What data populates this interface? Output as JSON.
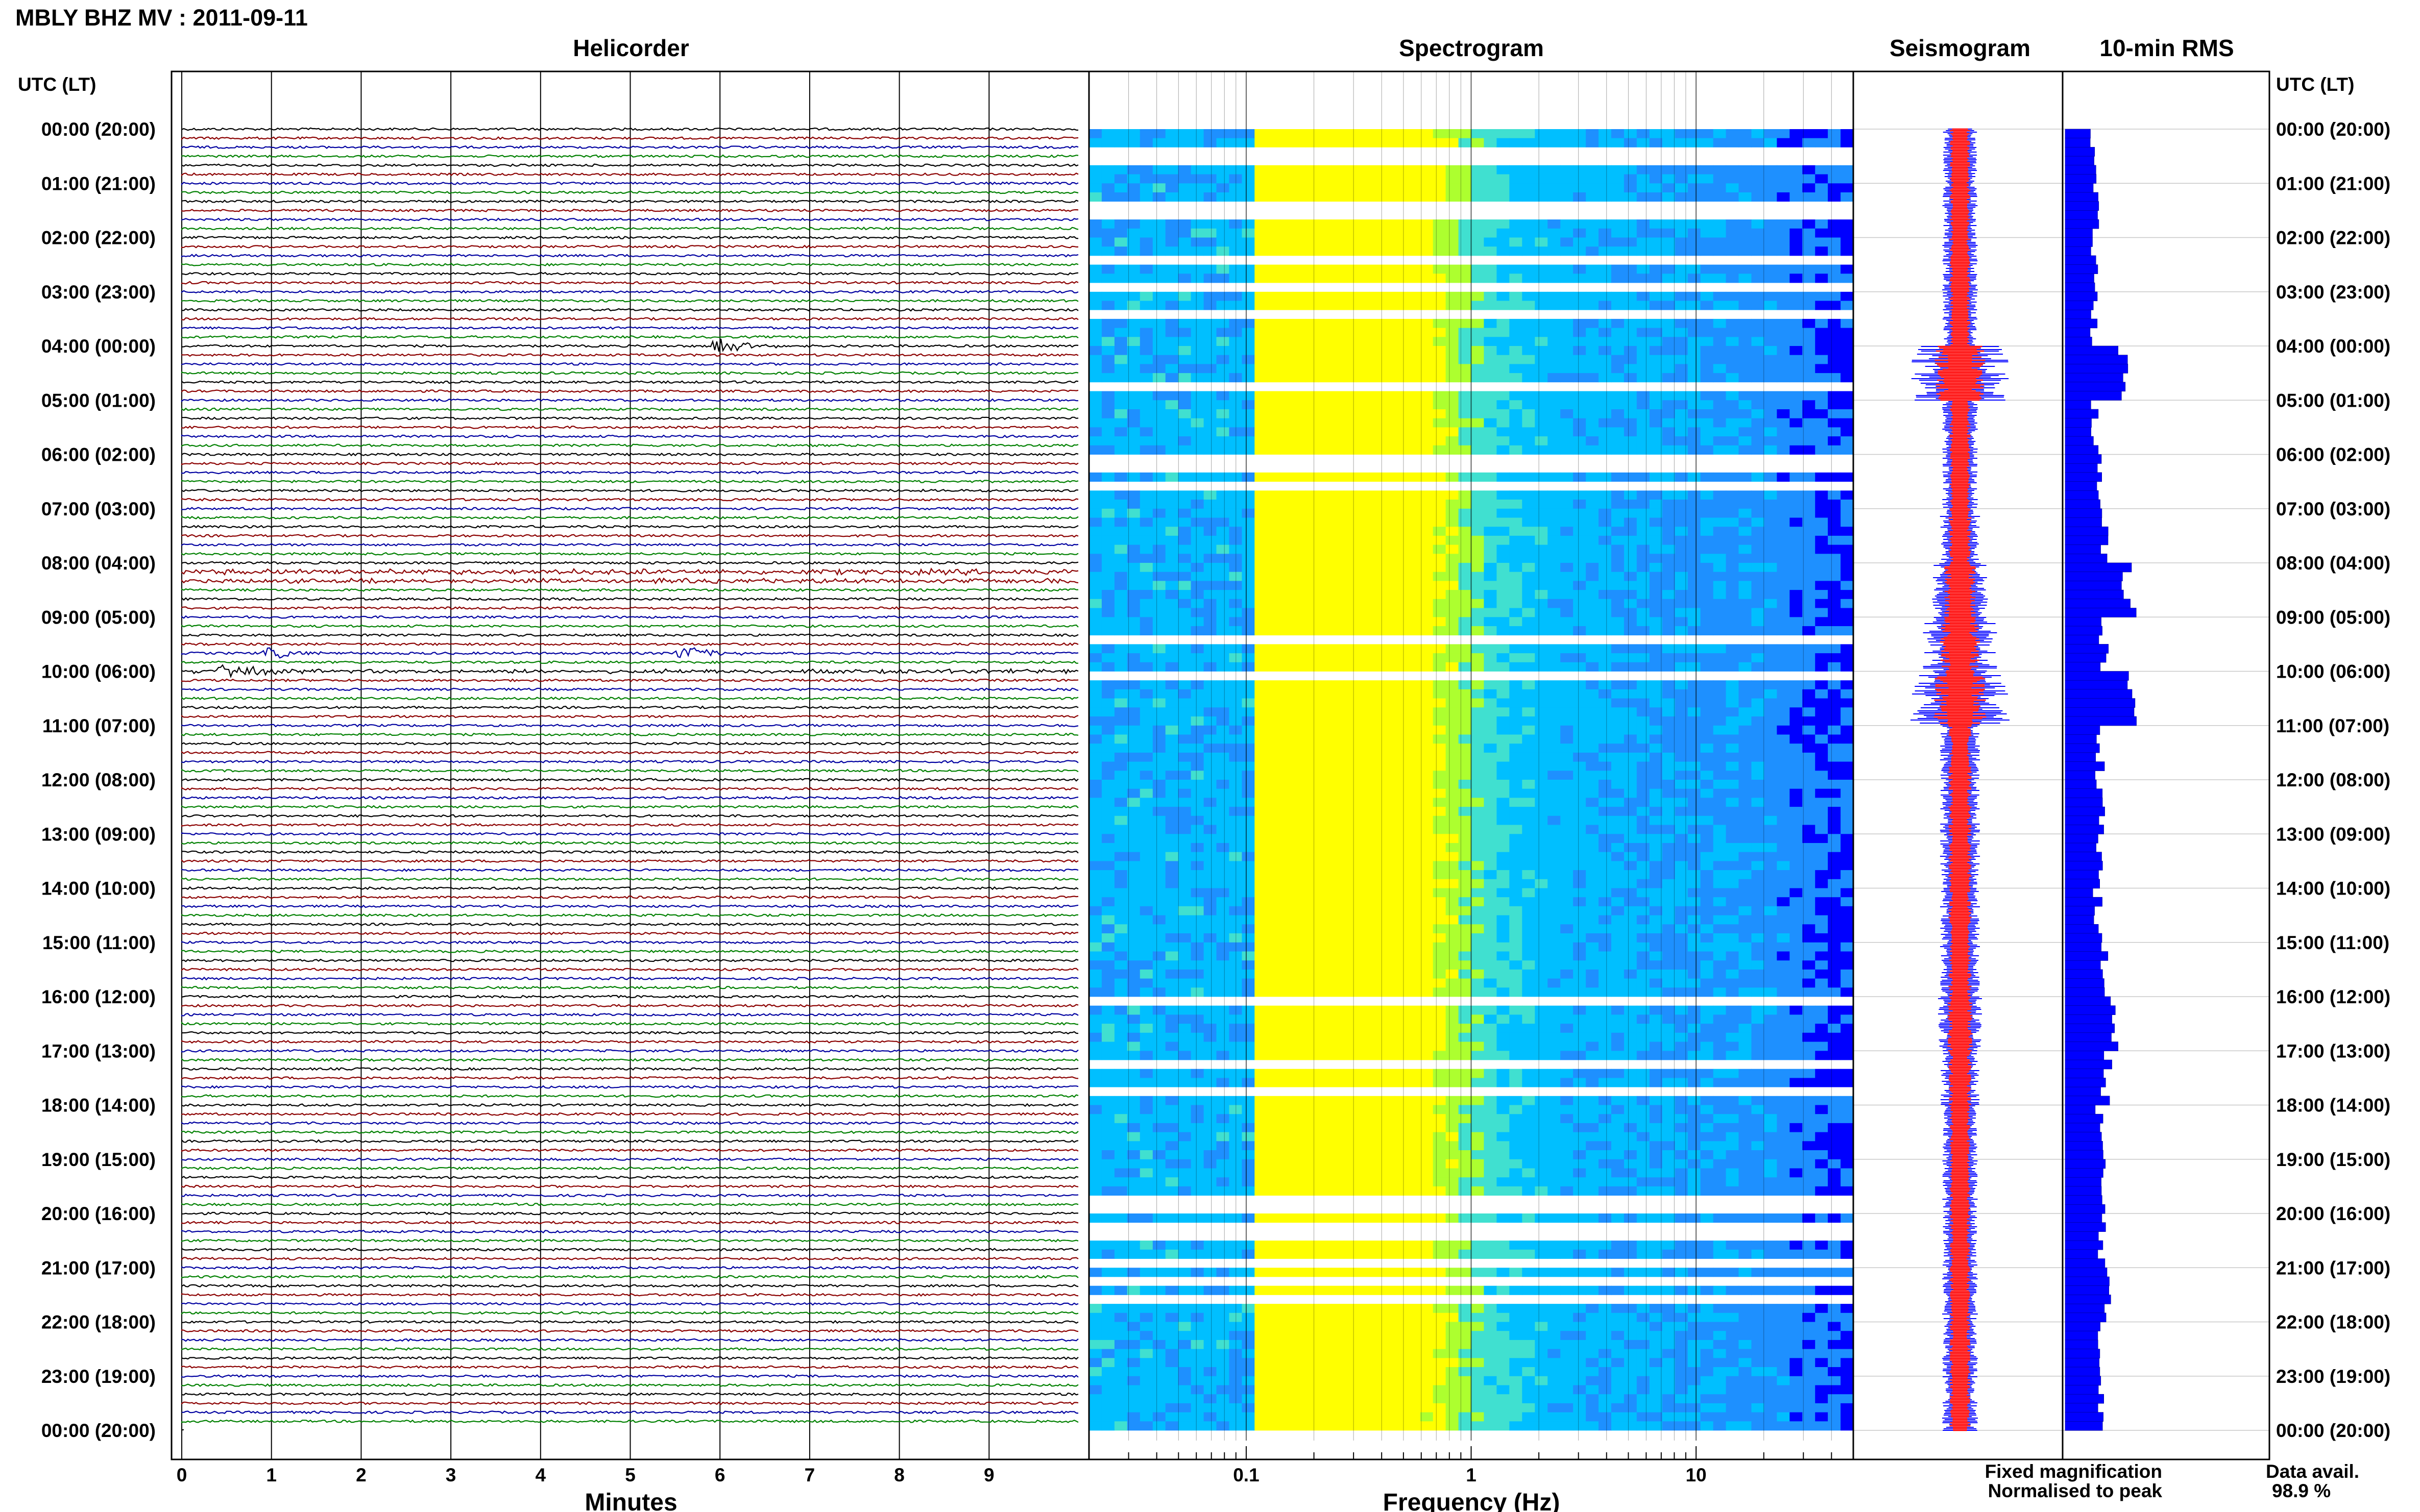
{
  "figure": {
    "title": "MBLY BHZ MV : 2011-09-11",
    "time_axis_label": "UTC (LT)",
    "legend": {
      "fixed": "Fixed magnification",
      "normalised": "Normalised to peak",
      "fixed_color": "#0000ff",
      "normalised_color": "#ff0000"
    },
    "data_availability": {
      "label": "Data avail.",
      "value": "98.9 %"
    }
  },
  "chart_data": [
    {
      "type": "line",
      "panel": "helicorder",
      "title": "Helicorder",
      "xlabel": "Minutes",
      "x_ticks": [
        "0",
        "1",
        "2",
        "3",
        "4",
        "5",
        "6",
        "7",
        "8",
        "9"
      ],
      "xlim": [
        0,
        10
      ],
      "rows_per_hour": 6,
      "trace_colors": [
        "#000000",
        "#8b0000",
        "#0000a0",
        "#008000"
      ],
      "events": [
        {
          "hour": 4.0,
          "minute": 6.0,
          "amp": 4.5,
          "color": "#008000"
        },
        {
          "hour": 8.25,
          "minute": 0,
          "amp": 3.0,
          "color": "#8b0000",
          "full": true
        },
        {
          "hour": 8.17,
          "minute": 0,
          "amp": 2.0,
          "color": "#0000a0",
          "full": true
        },
        {
          "hour": 10.0,
          "minute": 0.5,
          "amp": 5.0,
          "color": "#8b0000"
        },
        {
          "hour": 10.0,
          "minute": 0,
          "amp": 2.5,
          "color": "#000000",
          "full": true
        },
        {
          "hour": 9.67,
          "minute": 1.0,
          "amp": 3.5,
          "color": "#008000"
        },
        {
          "hour": 9.67,
          "minute": 5.6,
          "amp": 5.0,
          "color": "#008000"
        }
      ]
    },
    {
      "type": "heatmap",
      "panel": "spectrogram",
      "title": "Spectrogram",
      "xlabel": "Frequency (Hz)",
      "x_scale": "log",
      "x_ticks": [
        {
          "value": 0.1,
          "label": "0.1"
        },
        {
          "value": 1,
          "label": "1"
        },
        {
          "value": 10,
          "label": "10"
        }
      ],
      "xlim": [
        0.02,
        50
      ],
      "peak_frequency_hz": 0.25,
      "colormap": [
        "#00008b",
        "#0000ff",
        "#1e90ff",
        "#00bfff",
        "#40e0d0",
        "#adff2f",
        "#ffff00"
      ],
      "gap_hours": [
        0.3,
        0.5,
        1.4,
        1.45,
        2.35,
        2.9,
        3.3,
        4.6,
        4.7,
        5.95,
        6.1,
        6.55,
        9.35,
        9.95,
        16.0,
        17.2,
        17.6,
        19.6,
        19.75,
        20.25,
        20.8,
        21.2,
        21.45
      ]
    },
    {
      "type": "line",
      "panel": "seismogram",
      "title": "Seismogram",
      "hourly_amplitude": [
        0.25,
        0.25,
        0.25,
        0.25,
        1.0,
        0.25,
        0.25,
        0.3,
        0.5,
        0.7,
        1.0,
        0.3,
        0.3,
        0.3,
        0.3,
        0.3,
        0.35,
        0.3,
        0.25,
        0.25,
        0.25,
        0.25,
        0.25,
        0.25
      ]
    },
    {
      "type": "bar",
      "panel": "rms",
      "title": "10-min RMS",
      "orientation": "horizontal",
      "series": [
        {
          "name": "Fixed magnification",
          "color": "#0000ff"
        },
        {
          "name": "Normalised to peak",
          "color": "#ff0000"
        }
      ],
      "values_by_hour": [
        0.48,
        0.5,
        0.5,
        0.5,
        1.0,
        0.5,
        0.55,
        0.65,
        1.1,
        0.65,
        1.1,
        0.6,
        0.62,
        0.58,
        0.55,
        0.65,
        0.8,
        0.7,
        0.6,
        0.62,
        0.65,
        0.68,
        0.6,
        0.65
      ]
    }
  ],
  "time_labels": [
    "00:00 (20:00)",
    "01:00 (21:00)",
    "02:00 (22:00)",
    "03:00 (23:00)",
    "04:00 (00:00)",
    "05:00 (01:00)",
    "06:00 (02:00)",
    "07:00 (03:00)",
    "08:00 (04:00)",
    "09:00 (05:00)",
    "10:00 (06:00)",
    "11:00 (07:00)",
    "12:00 (08:00)",
    "13:00 (09:00)",
    "14:00 (10:00)",
    "15:00 (11:00)",
    "16:00 (12:00)",
    "17:00 (13:00)",
    "18:00 (14:00)",
    "19:00 (15:00)",
    "20:00 (16:00)",
    "21:00 (17:00)",
    "22:00 (18:00)",
    "23:00 (19:00)",
    "00:00 (20:00)"
  ]
}
